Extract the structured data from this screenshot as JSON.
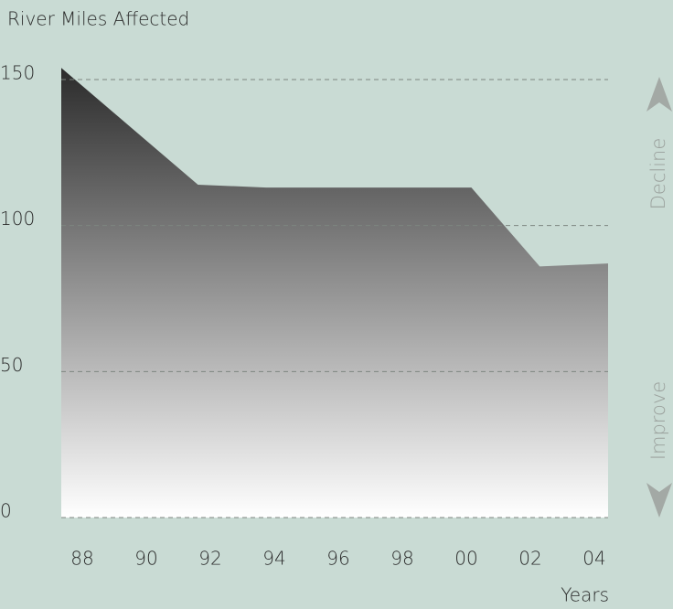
{
  "chart_data": {
    "type": "area",
    "title": "River Miles Affected",
    "x_label": "Years",
    "annotations": [
      "Decline",
      "Improve"
    ],
    "categories": [
      "88",
      "90",
      "92",
      "94",
      "96",
      "98",
      "00",
      "02",
      "04"
    ],
    "values": [
      154,
      134,
      114,
      113,
      113,
      113,
      113,
      86,
      87
    ],
    "ylim": [
      0,
      150
    ],
    "yticks": [
      0,
      50,
      100,
      150
    ],
    "grid": true,
    "gradient": [
      "#2b2b2b",
      "#ffffff"
    ],
    "background": "#c9dbd4"
  }
}
